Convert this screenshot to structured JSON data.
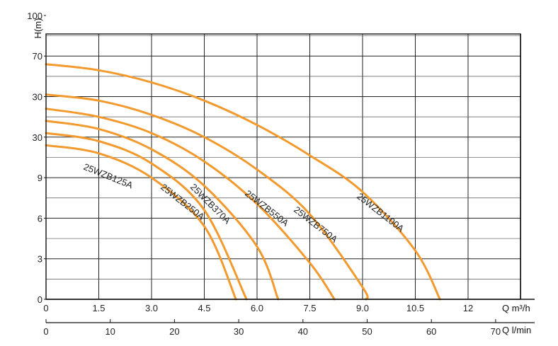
{
  "chart_data": {
    "type": "line",
    "title": "",
    "ylabel": "H(m)",
    "xlabel": "Q m³/h",
    "xlabel_secondary": "Q l/min",
    "y_ticks": [
      "0",
      "3",
      "6",
      "9",
      "30",
      "30",
      "70",
      "100"
    ],
    "x_ticks": [
      "0",
      "1.5",
      "3.0",
      "4.5",
      "6.0",
      "7.5",
      "9.0",
      "10.5",
      "12"
    ],
    "x2_ticks": [
      "0",
      "10",
      "20",
      "30",
      "40",
      "50",
      "60",
      "70"
    ],
    "xlim": [
      0,
      13.5
    ],
    "x2lim": [
      0,
      70
    ],
    "grid": true,
    "line_color": "#f39a2e",
    "series": [
      {
        "name": "25WZB125A",
        "points": [
          [
            0,
            3.8
          ],
          [
            1.5,
            3.6
          ],
          [
            3.0,
            3.0
          ],
          [
            4.5,
            1.8
          ],
          [
            5.4,
            0.0
          ]
        ]
      },
      {
        "name": "25WZB250A",
        "points": [
          [
            0,
            4.1
          ],
          [
            1.5,
            3.9
          ],
          [
            3.0,
            3.35
          ],
          [
            4.5,
            2.2
          ],
          [
            5.7,
            0.0
          ]
        ]
      },
      {
        "name": "25WZB370A",
        "points": [
          [
            0,
            4.4
          ],
          [
            1.5,
            4.2
          ],
          [
            3.0,
            3.7
          ],
          [
            4.5,
            2.8
          ],
          [
            6.0,
            1.3
          ],
          [
            6.6,
            0.0
          ]
        ]
      },
      {
        "name": "25WZB550A",
        "points": [
          [
            0,
            4.7
          ],
          [
            1.5,
            4.5
          ],
          [
            3.0,
            4.1
          ],
          [
            4.5,
            3.4
          ],
          [
            6.0,
            2.35
          ],
          [
            7.5,
            0.9
          ],
          [
            8.2,
            0.0
          ]
        ]
      },
      {
        "name": "25WZB750A",
        "points": [
          [
            0,
            5.05
          ],
          [
            1.5,
            4.9
          ],
          [
            3.0,
            4.55
          ],
          [
            4.5,
            4.0
          ],
          [
            6.0,
            3.2
          ],
          [
            7.5,
            2.1
          ],
          [
            9.0,
            0.3
          ],
          [
            9.1,
            0.0
          ]
        ]
      },
      {
        "name": "25WZB1100A",
        "points": [
          [
            0,
            5.8
          ],
          [
            1.5,
            5.65
          ],
          [
            3.0,
            5.35
          ],
          [
            4.5,
            4.9
          ],
          [
            6.0,
            4.3
          ],
          [
            7.5,
            3.55
          ],
          [
            9.0,
            2.65
          ],
          [
            10.5,
            1.2
          ],
          [
            11.2,
            0.0
          ]
        ]
      }
    ]
  }
}
